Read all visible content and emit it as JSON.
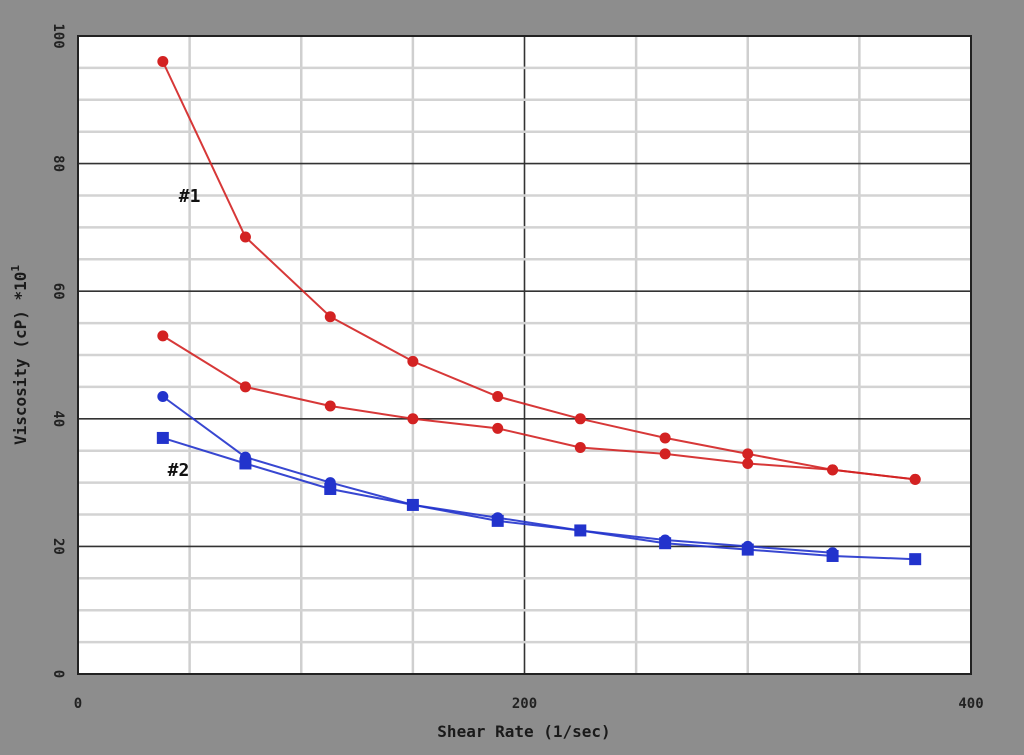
{
  "chart_data": {
    "type": "line",
    "xlabel": "Shear Rate (1/sec)",
    "ylabel_main": "Viscosity (cP) *10",
    "ylabel_sup": "1",
    "xlim": [
      0,
      400
    ],
    "ylim": [
      0,
      100
    ],
    "x_ticks": [
      "0",
      "200",
      "400"
    ],
    "y_ticks": [
      "0",
      "20",
      "40",
      "60",
      "80",
      "100"
    ],
    "grid": true,
    "legend": "none",
    "annotations": [
      {
        "text": "#1",
        "x": 50,
        "y": 74
      },
      {
        "text": "#2",
        "x": 45,
        "y": 31
      }
    ],
    "series": [
      {
        "color": "#d32222",
        "marker": "circle",
        "x": [
          38,
          75,
          113,
          150,
          188,
          225,
          263,
          300,
          338,
          375
        ],
        "y": [
          96,
          68.5,
          56,
          49,
          43.5,
          40,
          37,
          34.5,
          32,
          30.5
        ]
      },
      {
        "color": "#d32222",
        "marker": "circle",
        "x": [
          38,
          75,
          113,
          150,
          188,
          225,
          263,
          300,
          338,
          375
        ],
        "y": [
          53,
          45,
          42,
          40,
          38.5,
          35.5,
          34.5,
          33,
          32,
          30.5
        ]
      },
      {
        "color": "#2233cc",
        "marker": "circle",
        "x": [
          38,
          75,
          113,
          150,
          188,
          225,
          263,
          300,
          338
        ],
        "y": [
          43.5,
          34,
          30,
          26.5,
          24.5,
          22.5,
          21,
          20,
          19
        ]
      },
      {
        "color": "#2233cc",
        "marker": "square",
        "x": [
          38,
          75,
          113,
          150,
          188,
          225,
          263,
          300,
          338,
          375
        ],
        "y": [
          37,
          33,
          29,
          26.5,
          24,
          22.5,
          20.5,
          19.5,
          18.5,
          18
        ]
      }
    ]
  }
}
